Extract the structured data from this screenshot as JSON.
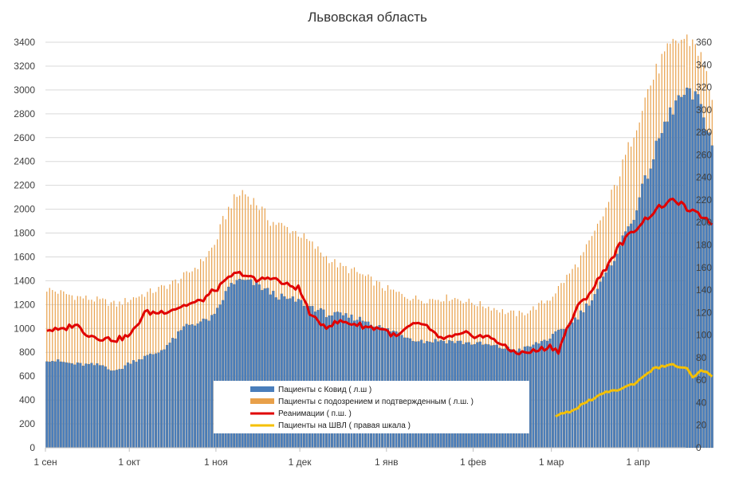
{
  "colors": {
    "covid": "#4a7ebb",
    "covid_edge": "#5b5b5b",
    "suspected": "#e8a04a",
    "icu": "#e00000",
    "ventilator": "#f5c000"
  },
  "chart_data": {
    "type": "bar",
    "title": "Львовская область",
    "left_axis": {
      "range": [
        0,
        3400
      ],
      "ticks": [
        0,
        200,
        400,
        600,
        800,
        1000,
        1200,
        1400,
        1600,
        1800,
        2000,
        2200,
        2400,
        2600,
        2800,
        3000,
        3200,
        3400
      ]
    },
    "right_axis": {
      "range": [
        0,
        360
      ],
      "ticks": [
        0,
        20,
        40,
        60,
        80,
        100,
        120,
        140,
        160,
        180,
        200,
        220,
        240,
        260,
        280,
        300,
        320,
        340,
        360
      ]
    },
    "x_axis": {
      "labels": [
        "1 сен",
        "1 окт",
        "1 ноя",
        "1 дек",
        "1 янв",
        "1 фев",
        "1 мар",
        "1 апр"
      ],
      "label_days": [
        0,
        30,
        61,
        91,
        122,
        153,
        181,
        212
      ],
      "total_days": 229
    },
    "grid": true,
    "legend_position": "bottom-center",
    "series": [
      {
        "name": "Пациенты с Ковид ( л.ш )",
        "kind": "bar",
        "axis": "left",
        "points": [
          [
            0,
            740
          ],
          [
            10,
            700
          ],
          [
            20,
            690
          ],
          [
            25,
            640
          ],
          [
            30,
            720
          ],
          [
            35,
            760
          ],
          [
            40,
            800
          ],
          [
            45,
            900
          ],
          [
            50,
            1030
          ],
          [
            55,
            1050
          ],
          [
            60,
            1100
          ],
          [
            63,
            1250
          ],
          [
            66,
            1380
          ],
          [
            70,
            1400
          ],
          [
            75,
            1370
          ],
          [
            80,
            1300
          ],
          [
            85,
            1250
          ],
          [
            90,
            1230
          ],
          [
            95,
            1180
          ],
          [
            100,
            1120
          ],
          [
            105,
            1110
          ],
          [
            110,
            1090
          ],
          [
            115,
            1060
          ],
          [
            120,
            1000
          ],
          [
            125,
            970
          ],
          [
            130,
            920
          ],
          [
            135,
            890
          ],
          [
            140,
            900
          ],
          [
            145,
            890
          ],
          [
            150,
            880
          ],
          [
            155,
            870
          ],
          [
            160,
            850
          ],
          [
            165,
            830
          ],
          [
            170,
            820
          ],
          [
            175,
            870
          ],
          [
            180,
            920
          ],
          [
            185,
            1000
          ],
          [
            190,
            1100
          ],
          [
            195,
            1250
          ],
          [
            200,
            1450
          ],
          [
            205,
            1700
          ],
          [
            210,
            1950
          ],
          [
            215,
            2300
          ],
          [
            220,
            2650
          ],
          [
            225,
            2900
          ],
          [
            228,
            2950
          ],
          [
            232,
            2950
          ],
          [
            235,
            2800
          ],
          [
            238,
            2550
          ]
        ]
      },
      {
        "name": "Пациенты с подозрением и подтвержденным ( л.ш. )",
        "kind": "bar",
        "axis": "left",
        "points": [
          [
            0,
            1330
          ],
          [
            10,
            1270
          ],
          [
            20,
            1230
          ],
          [
            25,
            1200
          ],
          [
            30,
            1250
          ],
          [
            35,
            1290
          ],
          [
            40,
            1330
          ],
          [
            45,
            1380
          ],
          [
            50,
            1450
          ],
          [
            55,
            1550
          ],
          [
            60,
            1700
          ],
          [
            63,
            1900
          ],
          [
            66,
            2050
          ],
          [
            70,
            2150
          ],
          [
            75,
            2050
          ],
          [
            80,
            1900
          ],
          [
            85,
            1850
          ],
          [
            90,
            1800
          ],
          [
            95,
            1700
          ],
          [
            100,
            1600
          ],
          [
            105,
            1520
          ],
          [
            110,
            1480
          ],
          [
            115,
            1420
          ],
          [
            120,
            1350
          ],
          [
            125,
            1300
          ],
          [
            130,
            1260
          ],
          [
            135,
            1240
          ],
          [
            140,
            1250
          ],
          [
            145,
            1260
          ],
          [
            150,
            1230
          ],
          [
            155,
            1200
          ],
          [
            160,
            1170
          ],
          [
            165,
            1130
          ],
          [
            170,
            1120
          ],
          [
            175,
            1180
          ],
          [
            180,
            1250
          ],
          [
            185,
            1400
          ],
          [
            190,
            1550
          ],
          [
            195,
            1750
          ],
          [
            200,
            2000
          ],
          [
            205,
            2300
          ],
          [
            210,
            2650
          ],
          [
            215,
            3000
          ],
          [
            220,
            3250
          ],
          [
            225,
            3400
          ],
          [
            228,
            3430
          ],
          [
            232,
            3400
          ],
          [
            235,
            3200
          ],
          [
            238,
            2950
          ]
        ]
      },
      {
        "name": "Реанимации ( п.ш. )",
        "kind": "line",
        "axis": "right",
        "points": [
          [
            0,
            105
          ],
          [
            5,
            104
          ],
          [
            10,
            110
          ],
          [
            15,
            100
          ],
          [
            20,
            97
          ],
          [
            25,
            96
          ],
          [
            30,
            100
          ],
          [
            35,
            120
          ],
          [
            40,
            120
          ],
          [
            45,
            123
          ],
          [
            50,
            127
          ],
          [
            55,
            130
          ],
          [
            60,
            140
          ],
          [
            63,
            145
          ],
          [
            66,
            153
          ],
          [
            70,
            155
          ],
          [
            75,
            148
          ],
          [
            80,
            152
          ],
          [
            85,
            145
          ],
          [
            90,
            142
          ],
          [
            95,
            115
          ],
          [
            100,
            108
          ],
          [
            105,
            112
          ],
          [
            110,
            110
          ],
          [
            115,
            107
          ],
          [
            120,
            106
          ],
          [
            125,
            98
          ],
          [
            130,
            108
          ],
          [
            135,
            110
          ],
          [
            140,
            97
          ],
          [
            145,
            98
          ],
          [
            150,
            101
          ],
          [
            155,
            99
          ],
          [
            160,
            97
          ],
          [
            165,
            87
          ],
          [
            170,
            84
          ],
          [
            175,
            86
          ],
          [
            180,
            90
          ],
          [
            183,
            86
          ],
          [
            186,
            105
          ],
          [
            190,
            125
          ],
          [
            195,
            140
          ],
          [
            200,
            160
          ],
          [
            205,
            180
          ],
          [
            210,
            193
          ],
          [
            215,
            205
          ],
          [
            220,
            215
          ],
          [
            225,
            220
          ],
          [
            230,
            210
          ],
          [
            235,
            205
          ],
          [
            238,
            200
          ]
        ]
      },
      {
        "name": "Пациенты на ШВЛ ( правая шкала )",
        "kind": "line",
        "axis": "right",
        "points": [
          [
            182,
            28
          ],
          [
            187,
            32
          ],
          [
            190,
            36
          ],
          [
            193,
            41
          ],
          [
            196,
            43
          ],
          [
            199,
            49
          ],
          [
            202,
            50
          ],
          [
            205,
            52
          ],
          [
            208,
            55
          ],
          [
            211,
            58
          ],
          [
            214,
            65
          ],
          [
            217,
            70
          ],
          [
            220,
            72
          ],
          [
            223,
            74
          ],
          [
            226,
            72
          ],
          [
            229,
            70
          ],
          [
            231,
            62
          ],
          [
            234,
            68
          ],
          [
            237,
            66
          ],
          [
            238,
            64
          ]
        ]
      }
    ]
  }
}
